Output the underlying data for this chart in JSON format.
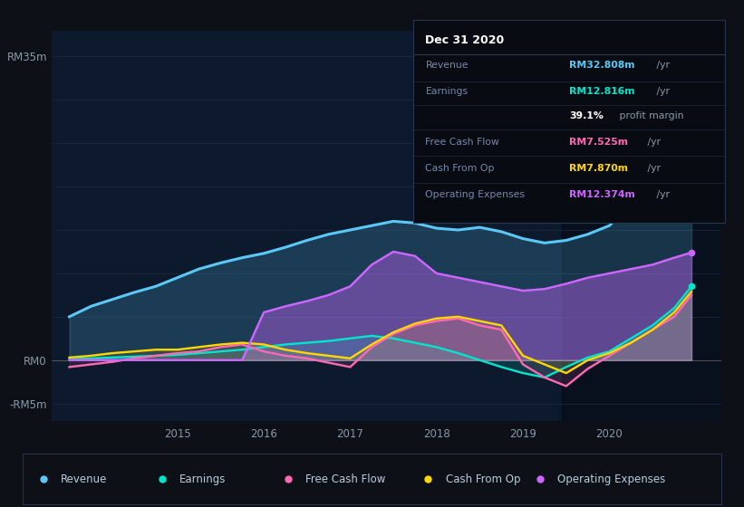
{
  "bg_color": "#0d1117",
  "chart_bg": "#0d1a2e",
  "grid_color": "#1a2a40",
  "ylim": [
    -7,
    38
  ],
  "xlim": [
    2013.55,
    2021.3
  ],
  "revenue_color": "#5bc8f5",
  "earnings_color": "#00e5cc",
  "fcf_color": "#ff69b4",
  "cashfromop_color": "#ffd700",
  "opex_color": "#cc66ff",
  "legend": [
    {
      "label": "Revenue",
      "color": "#5bc8f5"
    },
    {
      "label": "Earnings",
      "color": "#00e5cc"
    },
    {
      "label": "Free Cash Flow",
      "color": "#ff69b4"
    },
    {
      "label": "Cash From Op",
      "color": "#ffd700"
    },
    {
      "label": "Operating Expenses",
      "color": "#cc66ff"
    }
  ],
  "info_title": "Dec 31 2020",
  "info_rows": [
    {
      "label": "Revenue",
      "value": "RM32.808m",
      "suffix": " /yr",
      "color": "#5bc8f5"
    },
    {
      "label": "Earnings",
      "value": "RM12.816m",
      "suffix": " /yr",
      "color": "#00e5cc"
    },
    {
      "label": "",
      "value": "39.1%",
      "suffix": " profit margin",
      "color": "#ffffff"
    },
    {
      "label": "Free Cash Flow",
      "value": "RM7.525m",
      "suffix": " /yr",
      "color": "#ff69b4"
    },
    {
      "label": "Cash From Op",
      "value": "RM7.870m",
      "suffix": " /yr",
      "color": "#ffd700"
    },
    {
      "label": "Operating Expenses",
      "value": "RM12.374m",
      "suffix": " /yr",
      "color": "#cc66ff"
    }
  ]
}
